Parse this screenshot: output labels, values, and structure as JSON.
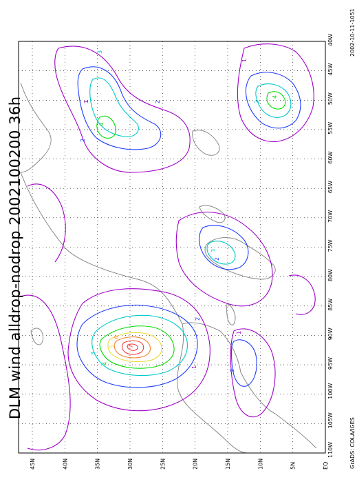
{
  "title": "DLM wind alldrop-nodrop 2002100200 36h",
  "footer": {
    "left": "GrADS: COLA/IGES",
    "right": "2002-10-11-1051"
  },
  "map": {
    "lon_labels": [
      "110W",
      "105W",
      "100W",
      "95W",
      "90W",
      "85W",
      "80W",
      "75W",
      "70W",
      "65W",
      "60W",
      "55W",
      "50W",
      "45W",
      "40W"
    ],
    "lat_labels": [
      "EQ",
      "5N",
      "10N",
      "15N",
      "20N",
      "25N",
      "30N",
      "35N",
      "40N",
      "45N"
    ],
    "contour_labels": [
      "1",
      "2",
      "3",
      "4",
      "5",
      "6",
      "7"
    ],
    "colors": {
      "c1": "#a000c8",
      "c2": "#1e3cff",
      "c3": "#00c8c8",
      "c4": "#00dc00",
      "c5": "#e6dc32",
      "c6": "#f08228",
      "c7": "#fa3c3c",
      "coast": "#888888",
      "grid": "#000000"
    }
  }
}
